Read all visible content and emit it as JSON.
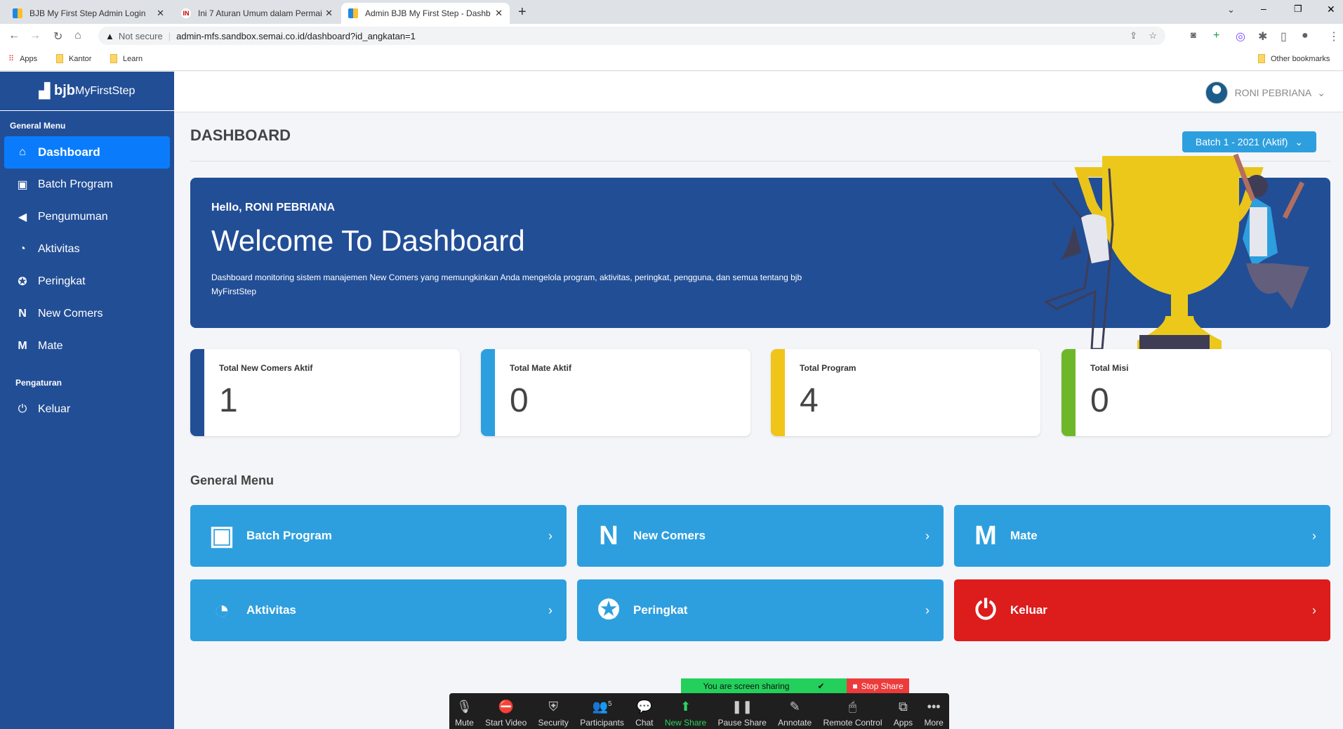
{
  "browser": {
    "tabs": [
      {
        "title": "BJB My First Step Admin Login"
      },
      {
        "title": "Ini 7 Aturan Umum dalam Permai"
      },
      {
        "title": "Admin BJB My First Step - Dashb"
      }
    ],
    "security": "Not secure",
    "url": "admin-mfs.sandbox.semai.co.id/dashboard?id_angkatan=1",
    "bookmarks": [
      "Apps",
      "Kantor",
      "Learn"
    ],
    "other_bookmarks": "Other bookmarks"
  },
  "sidebar": {
    "logo_bold": "bjb",
    "logo_light": "MyFirstStep",
    "section1": "General Menu",
    "items": [
      {
        "label": "Dashboard",
        "icon": "home-icon"
      },
      {
        "label": "Batch Program",
        "icon": "briefcase-icon"
      },
      {
        "label": "Pengumuman",
        "icon": "megaphone-icon"
      },
      {
        "label": "Aktivitas",
        "icon": "activity-icon"
      },
      {
        "label": "Peringkat",
        "icon": "award-icon"
      },
      {
        "label": "New Comers",
        "icon": "newcomers-icon"
      },
      {
        "label": "Mate",
        "icon": "mate-icon"
      }
    ],
    "section2": "Pengaturan",
    "logout": "Keluar"
  },
  "header": {
    "user": "RONI PEBRIANA"
  },
  "page": {
    "title": "DASHBOARD",
    "batch": "Batch 1 - 2021 (Aktif)"
  },
  "banner": {
    "hello": "Hello, RONI PEBRIANA",
    "title": "Welcome To Dashboard",
    "desc": "Dashboard monitoring sistem manajemen New Comers yang memungkinkan Anda mengelola program, aktivitas, peringkat, pengguna, dan semua tentang bjb MyFirstStep"
  },
  "stats": [
    {
      "label": "Total New Comers Aktif",
      "value": "1",
      "color": "#224e96"
    },
    {
      "label": "Total Mate Aktif",
      "value": "0",
      "color": "#2e9fde"
    },
    {
      "label": "Total Program",
      "value": "4",
      "color": "#f0c419"
    },
    {
      "label": "Total Misi",
      "value": "0",
      "color": "#6fb72a"
    }
  ],
  "menu": {
    "title": "General Menu",
    "tiles": [
      {
        "label": "Batch Program"
      },
      {
        "label": "New Comers"
      },
      {
        "label": "Mate"
      },
      {
        "label": "Aktivitas"
      },
      {
        "label": "Peringkat"
      },
      {
        "label": "Keluar",
        "color": "#dd1c1c"
      }
    ]
  },
  "zoom": {
    "sharing": "You are screen sharing",
    "stop": "Stop Share",
    "participants_count": "5",
    "buttons": [
      "Mute",
      "Start Video",
      "Security",
      "Participants",
      "Chat",
      "New Share",
      "Pause Share",
      "Annotate",
      "Remote Control",
      "Apps",
      "More"
    ]
  }
}
